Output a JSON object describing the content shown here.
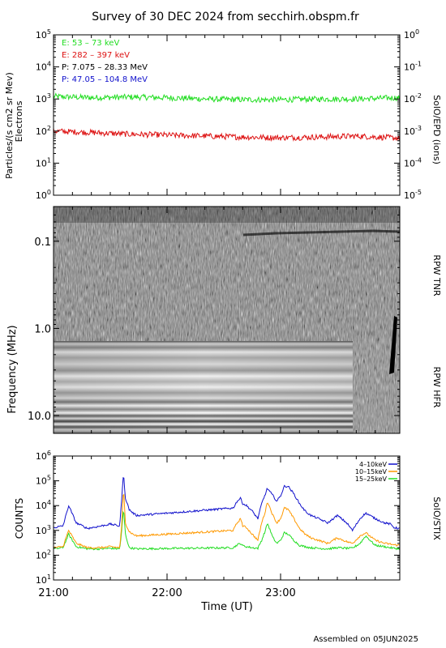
{
  "title": "Survey of 30 DEC 2024 from secchirh.obspm.fr",
  "footer": "Assembled on 05JUN2025",
  "x_axis": {
    "label": "Time (UT)",
    "ticks": [
      {
        "t": 0,
        "label": "21:00"
      },
      {
        "t": 60,
        "label": "22:00"
      },
      {
        "t": 120,
        "label": "23:00"
      }
    ],
    "range_minutes": [
      0,
      183
    ]
  },
  "panel1": {
    "ylabel": "Particles/(s cm2 sr Mev)",
    "ylabel2": "Electrons",
    "right_label": "SolO/EPD (ions)",
    "left_ticks": [
      {
        "exp": 0,
        "base": "10",
        "sup": "0"
      },
      {
        "exp": 1,
        "base": "10",
        "sup": "1"
      },
      {
        "exp": 2,
        "base": "10",
        "sup": "2"
      },
      {
        "exp": 3,
        "base": "10",
        "sup": "3"
      },
      {
        "exp": 4,
        "base": "10",
        "sup": "4"
      },
      {
        "exp": 5,
        "base": "10",
        "sup": "5"
      }
    ],
    "right_ticks": [
      {
        "exp": -5,
        "base": "10",
        "sup": "-5"
      },
      {
        "exp": -4,
        "base": "10",
        "sup": "-4"
      },
      {
        "exp": -3,
        "base": "10",
        "sup": "-3"
      },
      {
        "exp": -2,
        "base": "10",
        "sup": "-2"
      },
      {
        "exp": -1,
        "base": "10",
        "sup": "-1"
      },
      {
        "exp": 0,
        "base": "10",
        "sup": "0"
      }
    ],
    "legend": [
      {
        "text": "E: 53 – 73 keV",
        "color": "#22dd22"
      },
      {
        "text": "E: 282 – 397 keV",
        "color": "#dd1111"
      },
      {
        "text": "P: 7.075 – 28.33 MeV",
        "color": "#000000"
      },
      {
        "text": "P: 47.05 – 104.8 MeV",
        "color": "#1111cc"
      }
    ]
  },
  "panel2": {
    "ylabel": "Frequency (MHz)",
    "ticks": [
      {
        "value": 0.1,
        "label": "0.1"
      },
      {
        "value": 1.0,
        "label": "1.0"
      },
      {
        "value": 10.0,
        "label": "10.0"
      }
    ],
    "freq_range_mhz": [
      0.04,
      16
    ],
    "tnr_hfr_boundary_mhz": 0.95,
    "right_label_top": "RPW TNR",
    "right_label_bottom": "RPW HFR"
  },
  "panel3": {
    "ylabel": "COUNTS",
    "right_label": "SolO/STIX",
    "ticks": [
      {
        "exp": 1,
        "base": "10",
        "sup": "1"
      },
      {
        "exp": 2,
        "base": "10",
        "sup": "2"
      },
      {
        "exp": 3,
        "base": "10",
        "sup": "3"
      },
      {
        "exp": 4,
        "base": "10",
        "sup": "4"
      },
      {
        "exp": 5,
        "base": "10",
        "sup": "5"
      },
      {
        "exp": 6,
        "base": "10",
        "sup": "6"
      }
    ],
    "legend": [
      {
        "text": "4–10keV",
        "color": "#1111cc"
      },
      {
        "text": "10–15keV",
        "color": "#ff9900"
      },
      {
        "text": "15–25keV",
        "color": "#22dd22"
      }
    ]
  },
  "chart_data": [
    {
      "type": "line",
      "title": "SolO/EPD",
      "xlabel": "",
      "ylabel": "Particles/(s cm2 sr Mev)",
      "yscale": "log",
      "ylim": [
        1,
        100000
      ],
      "x_unit": "minutes after 21:00 UT",
      "series": [
        {
          "name": "E: 53 – 73 keV",
          "color": "#22dd22",
          "x": [
            0,
            20,
            40,
            60,
            80,
            100,
            120,
            140,
            160,
            183
          ],
          "y": [
            1200,
            1100,
            1150,
            1100,
            1000,
            950,
            950,
            1000,
            1000,
            1100
          ]
        },
        {
          "name": "E: 282 – 397 keV",
          "color": "#dd1111",
          "x": [
            0,
            20,
            40,
            60,
            80,
            100,
            120,
            140,
            160,
            183
          ],
          "y": [
            100,
            90,
            80,
            75,
            70,
            65,
            62,
            65,
            70,
            60
          ]
        }
      ]
    },
    {
      "type": "heatmap",
      "title": "RPW TNR / RPW HFR",
      "ylabel": "Frequency (MHz)",
      "yscale": "log",
      "ylim": [
        0.04,
        16
      ],
      "x_unit": "minutes after 21:00 UT",
      "notes": "TNR 0.04–0.95 MHz noisy grey texture; HFR 0.95–16 MHz horizontal grey bands; burst near 178–181 min"
    },
    {
      "type": "line",
      "title": "SolO/STIX",
      "xlabel": "Time (UT)",
      "ylabel": "COUNTS",
      "yscale": "log",
      "ylim": [
        10,
        1000000
      ],
      "x_unit": "minutes after 21:00 UT",
      "series": [
        {
          "name": "4–10keV",
          "color": "#1111cc",
          "x": [
            0,
            5,
            8,
            12,
            18,
            25,
            30,
            35,
            36,
            37,
            38,
            40,
            42,
            44,
            95,
            97,
            99,
            100,
            102,
            105,
            108,
            110,
            112,
            113,
            116,
            118,
            120,
            122,
            124,
            127,
            130,
            133,
            136,
            140,
            145,
            150,
            155,
            158,
            162,
            165,
            170,
            175,
            178,
            180,
            183
          ],
          "y": [
            1300,
            1500,
            10000,
            2000,
            1200,
            1500,
            1800,
            1500,
            18000,
            200000,
            20000,
            7000,
            5000,
            4000,
            8000,
            15000,
            20000,
            12000,
            10000,
            6000,
            3000,
            12000,
            30000,
            50000,
            25000,
            15000,
            25000,
            60000,
            60000,
            30000,
            12000,
            6000,
            4000,
            3000,
            2000,
            4000,
            2000,
            1000,
            3000,
            5000,
            3000,
            2000,
            1800,
            1300,
            1200
          ]
        },
        {
          "name": "10–15keV",
          "color": "#ff9900",
          "x": [
            0,
            5,
            8,
            12,
            18,
            25,
            30,
            35,
            36,
            37,
            38,
            40,
            42,
            44,
            95,
            97,
            99,
            100,
            102,
            105,
            108,
            110,
            112,
            113,
            116,
            118,
            120,
            122,
            124,
            127,
            130,
            133,
            136,
            140,
            145,
            150,
            155,
            158,
            162,
            165,
            170,
            175,
            178,
            180,
            183
          ],
          "y": [
            200,
            220,
            1000,
            300,
            200,
            200,
            220,
            200,
            1500,
            50000,
            2000,
            900,
            700,
            600,
            1000,
            2000,
            3000,
            1500,
            1300,
            700,
            400,
            2000,
            6000,
            15000,
            4000,
            2000,
            3000,
            8000,
            7000,
            3000,
            1200,
            700,
            500,
            400,
            300,
            500,
            350,
            300,
            600,
            800,
            400,
            300,
            280,
            260,
            250
          ]
        },
        {
          "name": "15–25keV",
          "color": "#22dd22",
          "x": [
            0,
            5,
            8,
            12,
            18,
            25,
            30,
            35,
            36,
            37,
            38,
            40,
            42,
            44,
            95,
            97,
            99,
            100,
            102,
            105,
            108,
            110,
            112,
            113,
            116,
            118,
            120,
            122,
            124,
            127,
            130,
            133,
            136,
            140,
            145,
            150,
            155,
            158,
            162,
            165,
            170,
            175,
            178,
            180,
            183
          ],
          "y": [
            180,
            200,
            700,
            220,
            180,
            180,
            190,
            180,
            900,
            8000,
            700,
            200,
            190,
            180,
            200,
            260,
            300,
            240,
            220,
            200,
            190,
            400,
            1000,
            2000,
            500,
            300,
            400,
            800,
            700,
            400,
            250,
            220,
            200,
            190,
            180,
            200,
            190,
            190,
            300,
            600,
            250,
            220,
            200,
            190,
            180
          ]
        }
      ]
    }
  ]
}
